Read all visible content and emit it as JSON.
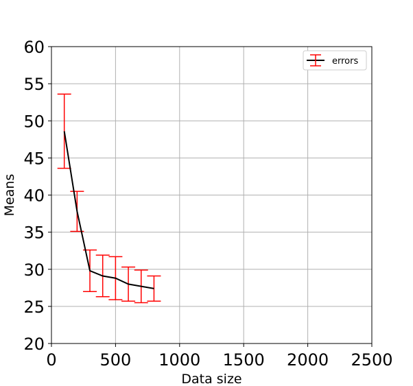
{
  "chart_data": {
    "type": "line",
    "title": "",
    "xlabel": "Data size",
    "ylabel": "Means",
    "xlim": [
      0,
      2500
    ],
    "ylim": [
      20,
      60
    ],
    "xticks": [
      0,
      500,
      1000,
      1500,
      2000,
      2500
    ],
    "yticks": [
      20,
      25,
      30,
      35,
      40,
      45,
      50,
      55,
      60
    ],
    "grid": true,
    "legend_position": "top-right",
    "series": [
      {
        "name": "errors",
        "line_color": "#000000",
        "error_color": "#ff0000",
        "x": [
          100,
          200,
          300,
          400,
          500,
          600,
          700,
          800
        ],
        "y": [
          48.6,
          37.8,
          29.8,
          29.1,
          28.8,
          28.0,
          27.7,
          27.4
        ],
        "err": [
          5.0,
          2.7,
          2.8,
          2.8,
          2.9,
          2.3,
          2.2,
          1.7
        ]
      }
    ]
  }
}
